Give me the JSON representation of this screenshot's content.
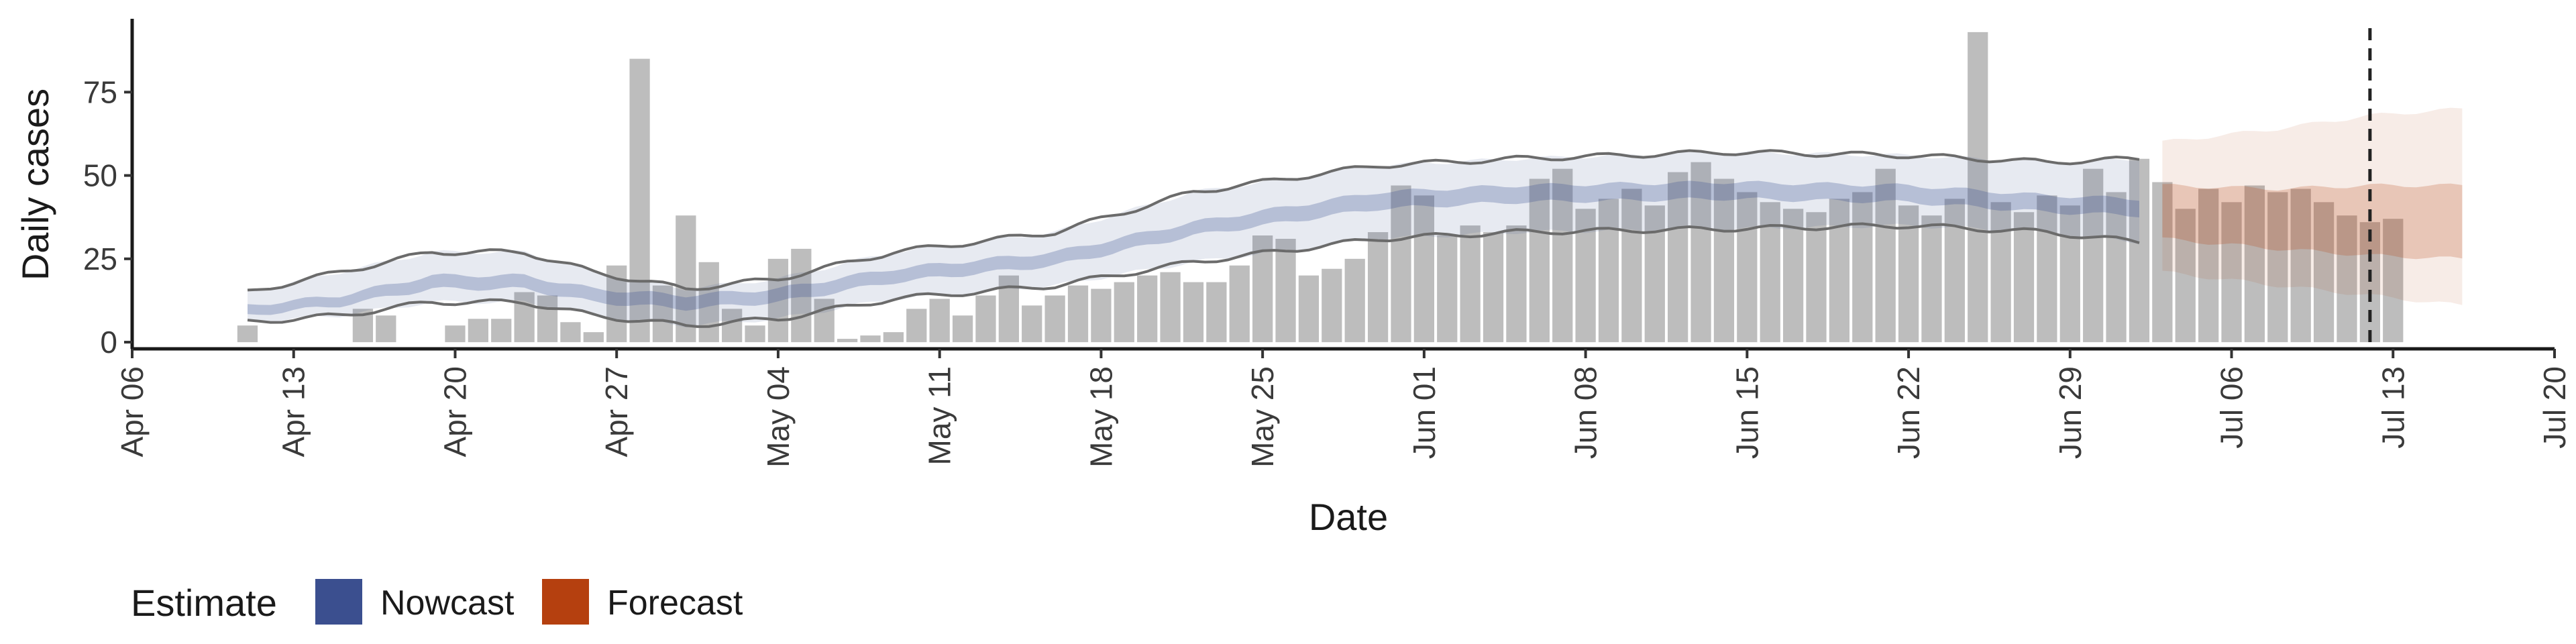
{
  "chart_data": {
    "type": "bar",
    "xlabel": "Date",
    "ylabel": "Daily cases",
    "x_domain": [
      "2020-04-06",
      "2020-07-20"
    ],
    "ylim": [
      -2,
      97
    ],
    "y_ticks": [
      0,
      25,
      50,
      75
    ],
    "x_ticks": [
      {
        "date": "2020-04-06",
        "label": "Apr 06"
      },
      {
        "date": "2020-04-13",
        "label": "Apr 13"
      },
      {
        "date": "2020-04-20",
        "label": "Apr 20"
      },
      {
        "date": "2020-04-27",
        "label": "Apr 27"
      },
      {
        "date": "2020-05-04",
        "label": "May 04"
      },
      {
        "date": "2020-05-11",
        "label": "May 11"
      },
      {
        "date": "2020-05-18",
        "label": "May 18"
      },
      {
        "date": "2020-05-25",
        "label": "May 25"
      },
      {
        "date": "2020-06-01",
        "label": "Jun 01"
      },
      {
        "date": "2020-06-08",
        "label": "Jun 08"
      },
      {
        "date": "2020-06-15",
        "label": "Jun 15"
      },
      {
        "date": "2020-06-22",
        "label": "Jun 22"
      },
      {
        "date": "2020-06-29",
        "label": "Jun 29"
      },
      {
        "date": "2020-07-06",
        "label": "Jul 06"
      },
      {
        "date": "2020-07-13",
        "label": "Jul 13"
      },
      {
        "date": "2020-07-20",
        "label": "Jul 20"
      }
    ],
    "bars": {
      "first_date": "2020-04-11",
      "values": [
        5,
        0,
        0,
        0,
        0,
        10,
        8,
        0,
        0,
        5,
        7,
        7,
        15,
        14,
        6,
        3,
        23,
        85,
        17,
        38,
        24,
        10,
        5,
        25,
        28,
        13,
        1,
        2,
        3,
        10,
        13,
        8,
        14,
        20,
        11,
        14,
        17,
        16,
        18,
        20,
        21,
        18,
        18,
        23,
        32,
        31,
        20,
        22,
        25,
        33,
        47,
        44,
        32,
        35,
        33,
        35,
        49,
        52,
        40,
        43,
        46,
        41,
        51,
        54,
        49,
        45,
        42,
        40,
        39,
        43,
        45,
        52,
        41,
        38,
        43,
        93,
        42,
        39,
        44,
        41,
        52,
        45,
        55,
        48,
        40,
        46,
        42,
        47,
        45,
        46,
        42,
        38,
        36,
        37
      ],
      "color": "#bdbdbd"
    },
    "nowcast": {
      "name": "Nowcast",
      "color": "#3b4f8f",
      "start_date": "2020-04-11",
      "end_date": "2020-07-02",
      "knots": [
        {
          "date": "2020-04-11",
          "lo90": 6,
          "lo50": 8,
          "hi50": 11,
          "hi90": 15
        },
        {
          "date": "2020-04-15",
          "lo90": 8,
          "lo50": 11,
          "hi50": 14,
          "hi90": 21
        },
        {
          "date": "2020-04-19",
          "lo90": 12,
          "lo50": 16,
          "hi50": 20,
          "hi90": 27
        },
        {
          "date": "2020-04-23",
          "lo90": 12,
          "lo50": 16,
          "hi50": 20,
          "hi90": 27
        },
        {
          "date": "2020-04-26",
          "lo90": 8,
          "lo50": 12,
          "hi50": 16,
          "hi90": 21
        },
        {
          "date": "2020-04-30",
          "lo90": 5,
          "lo50": 10,
          "hi50": 14,
          "hi90": 16
        },
        {
          "date": "2020-05-04",
          "lo90": 7,
          "lo50": 12,
          "hi50": 16,
          "hi90": 19
        },
        {
          "date": "2020-05-09",
          "lo90": 13,
          "lo50": 18,
          "hi50": 22,
          "hi90": 27
        },
        {
          "date": "2020-05-16",
          "lo90": 17,
          "lo50": 23,
          "hi50": 27,
          "hi90": 33
        },
        {
          "date": "2020-05-22",
          "lo90": 24,
          "lo50": 32,
          "hi50": 36,
          "hi90": 45
        },
        {
          "date": "2020-05-30",
          "lo90": 31,
          "lo50": 40,
          "hi50": 45,
          "hi90": 53
        },
        {
          "date": "2020-06-05",
          "lo90": 33,
          "lo50": 42,
          "hi50": 47,
          "hi90": 55
        },
        {
          "date": "2020-06-14",
          "lo90": 34,
          "lo50": 43,
          "hi50": 48,
          "hi90": 57
        },
        {
          "date": "2020-06-22",
          "lo90": 35,
          "lo50": 42,
          "hi50": 47,
          "hi90": 56
        },
        {
          "date": "2020-06-28",
          "lo90": 33,
          "lo50": 39,
          "hi50": 44,
          "hi90": 54
        },
        {
          "date": "2020-07-02",
          "lo90": 30,
          "lo50": 38,
          "hi50": 43,
          "hi90": 55
        }
      ]
    },
    "forecast": {
      "name": "Forecast",
      "color": "#b5400f",
      "knots": [
        {
          "date": "2020-07-03",
          "lo90": 21,
          "lo50": 31,
          "hi50": 47,
          "hi90": 60
        },
        {
          "date": "2020-07-08",
          "lo90": 17,
          "lo50": 28,
          "hi50": 46,
          "hi90": 64
        },
        {
          "date": "2020-07-12",
          "lo90": 14,
          "lo50": 26,
          "hi50": 47,
          "hi90": 68
        },
        {
          "date": "2020-07-16",
          "lo90": 11,
          "lo50": 25,
          "hi50": 47,
          "hi90": 70
        }
      ]
    },
    "vline_date": "2020-07-12",
    "legend": {
      "title": "Estimate",
      "position": "bottom",
      "entries": [
        {
          "label": "Nowcast",
          "color": "#3b4f8f"
        },
        {
          "label": "Forecast",
          "color": "#b5400f"
        }
      ]
    },
    "grid": false
  }
}
